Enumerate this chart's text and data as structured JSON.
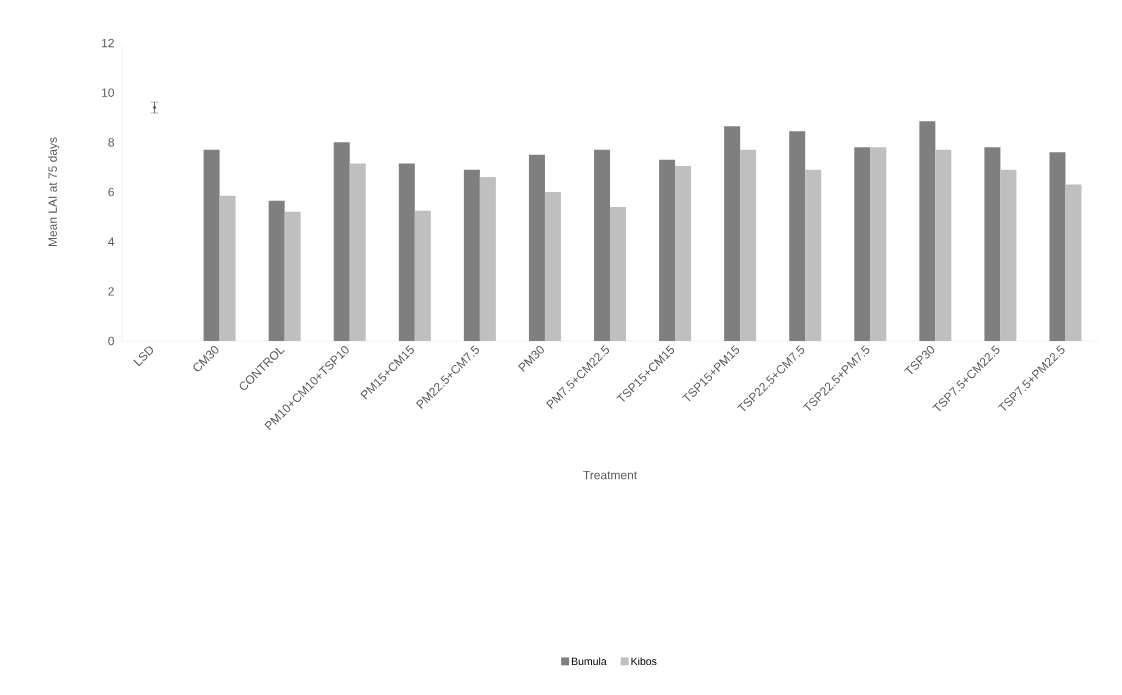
{
  "chart_data": {
    "type": "bar",
    "xlabel": "Treatment",
    "ylabel": "Mean LAI at 75 days",
    "categories": [
      "LSD",
      "CM30",
      "CONTROL",
      "PM10+CM10+TSP10",
      "PM15+CM15",
      "PM22.5+CM7.5",
      "PM30",
      "PM7.5+CM22.5",
      "TSP15+CM15",
      "TSP15+PM15",
      "TSP22.5+CM7.5",
      "TSP22.5+PM7.5",
      "TSP30",
      "TSP7.5+CM22.5",
      "TSP7.5+PM22.5"
    ],
    "series": [
      {
        "name": "Bumula",
        "color": "#7f7f7f",
        "values": [
          null,
          7.7,
          5.65,
          8.0,
          7.15,
          6.9,
          7.5,
          7.7,
          7.3,
          8.65,
          8.45,
          7.8,
          8.85,
          7.8,
          7.6
        ]
      },
      {
        "name": "Kibos",
        "color": "#bfbfbf",
        "values": [
          null,
          5.85,
          5.2,
          7.15,
          5.25,
          6.6,
          6.0,
          5.4,
          7.05,
          7.7,
          6.9,
          7.8,
          7.7,
          6.9,
          6.3
        ]
      },
      {
        "type": "scatter",
        "color": "#404040",
        "x": [
          "LSD"
        ],
        "values": [
          9.4
        ],
        "errors": [
          0.22
        ]
      }
    ],
    "ylim": [
      0,
      12
    ],
    "yticks": [
      0,
      2,
      4,
      6,
      8,
      10,
      12
    ],
    "legend": "bottom"
  }
}
